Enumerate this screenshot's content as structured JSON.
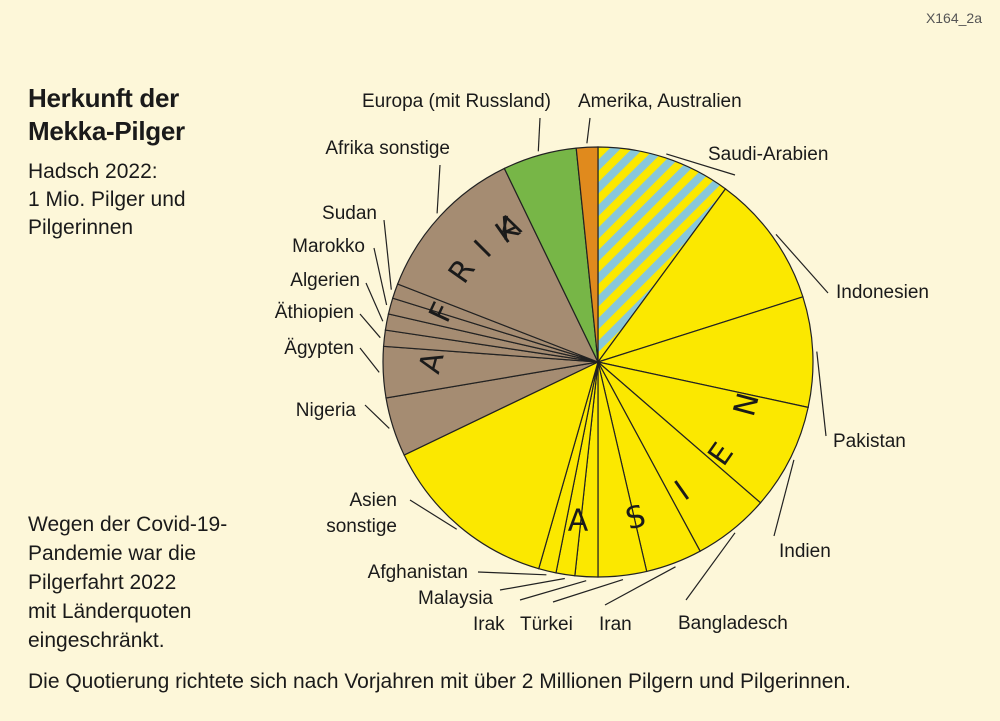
{
  "code": "X164_2a",
  "title": [
    "Herkunft der",
    "Mekka-Pilger"
  ],
  "subtitle": [
    "Hadsch 2022:",
    "1 Mio. Pilger und",
    "Pilgerinnen"
  ],
  "note": [
    "Wegen der Covid-19-",
    "Pandemie war die",
    "Pilgerfahrt 2022",
    "mit Länderquoten",
    "eingeschränkt."
  ],
  "footer": "Die Quotierung richtete sich nach Vorjahren mit über 2 Millionen Pilgern und Pilgerinnen.",
  "group_labels": {
    "asia": "ASIEN",
    "africa": "AFRIKA"
  },
  "colors": {
    "asia": "#fbe800",
    "africa": "#a58c72",
    "europe": "#77b647",
    "america": "#e08a1d",
    "saudi_stripe_a": "#fbe800",
    "saudi_stripe_b": "#88c7da",
    "outline": "#222222"
  },
  "chart_data": {
    "type": "pie",
    "unit": "%",
    "slices": [
      {
        "name": "Saudi-Arabien",
        "value": 10.0,
        "group": "saudi"
      },
      {
        "name": "Indonesien",
        "value": 9.9,
        "group": "asia"
      },
      {
        "name": "Pakistan",
        "value": 8.2,
        "group": "asia"
      },
      {
        "name": "Indien",
        "value": 7.9,
        "group": "asia"
      },
      {
        "name": "Bangladesch",
        "value": 5.7,
        "group": "asia"
      },
      {
        "name": "Iran",
        "value": 4.2,
        "group": "asia"
      },
      {
        "name": "Türkei",
        "value": 3.6,
        "group": "asia"
      },
      {
        "name": "Irak",
        "value": 1.7,
        "group": "asia"
      },
      {
        "name": "Malaysia",
        "value": 1.4,
        "group": "asia"
      },
      {
        "name": "Afghanistan",
        "value": 1.3,
        "group": "asia"
      },
      {
        "name": "Asien sonstige",
        "value": 13.3,
        "group": "asia"
      },
      {
        "name": "Nigeria",
        "value": 4.4,
        "group": "africa"
      },
      {
        "name": "Ägypten",
        "value": 3.8,
        "group": "africa"
      },
      {
        "name": "Äthiopien",
        "value": 1.2,
        "group": "africa"
      },
      {
        "name": "Algerien",
        "value": 1.2,
        "group": "africa"
      },
      {
        "name": "Marokko",
        "value": 1.2,
        "group": "africa"
      },
      {
        "name": "Sudan",
        "value": 1.1,
        "group": "africa"
      },
      {
        "name": "Afrika sonstige",
        "value": 11.8,
        "group": "africa"
      },
      {
        "name": "Europa (mit Russland)",
        "value": 5.5,
        "group": "europe"
      },
      {
        "name": "Amerika, Australien",
        "value": 1.6,
        "group": "america"
      }
    ]
  }
}
